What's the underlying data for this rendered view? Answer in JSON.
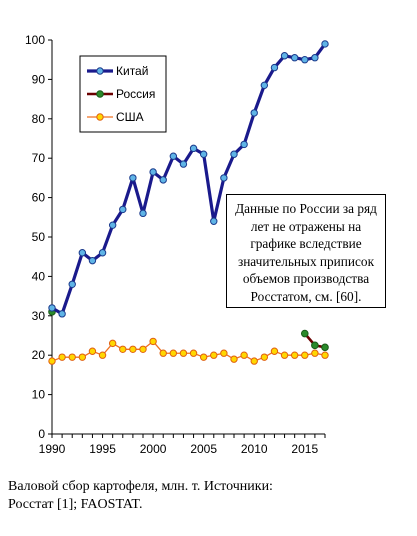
{
  "chart_data": {
    "type": "line",
    "xlim": [
      1990,
      2017
    ],
    "ylim": [
      0,
      100
    ],
    "x_ticks": [
      1990,
      1995,
      2000,
      2005,
      2010,
      2015
    ],
    "y_ticks": [
      0,
      10,
      20,
      30,
      40,
      50,
      60,
      70,
      80,
      90,
      100
    ],
    "grid": false,
    "legend_position": "top-left",
    "series": [
      {
        "name": "Китай",
        "color": "#1a1a8c",
        "marker_color": "#5fb4e6",
        "x": [
          1990,
          1991,
          1992,
          1993,
          1994,
          1995,
          1996,
          1997,
          1998,
          1999,
          2000,
          2001,
          2002,
          2003,
          2004,
          2005,
          2006,
          2007,
          2008,
          2009,
          2010,
          2011,
          2012,
          2013,
          2014,
          2015,
          2016,
          2017
        ],
        "values": [
          32,
          30.5,
          38,
          46,
          44,
          46,
          53,
          57,
          65,
          56,
          66.5,
          64.5,
          70.5,
          68.5,
          72.5,
          71,
          54,
          65,
          71,
          73.5,
          81.5,
          88.5,
          93,
          96,
          95.5,
          95,
          95.5,
          99
        ]
      },
      {
        "name": "Россия",
        "color": "#6b0000",
        "marker_color": "#2a8a2a",
        "x": [
          1990,
          2015,
          2016,
          2017
        ],
        "values": [
          31,
          25.5,
          22.5,
          22
        ]
      },
      {
        "name": "США",
        "color": "#f07020",
        "marker_color": "#ffd700",
        "x": [
          1990,
          1991,
          1992,
          1993,
          1994,
          1995,
          1996,
          1997,
          1998,
          1999,
          2000,
          2001,
          2002,
          2003,
          2004,
          2005,
          2006,
          2007,
          2008,
          2009,
          2010,
          2011,
          2012,
          2013,
          2014,
          2015,
          2016,
          2017
        ],
        "values": [
          18.5,
          19.5,
          19.5,
          19.5,
          21,
          20,
          23,
          21.5,
          21.5,
          21.5,
          23.5,
          20.5,
          20.5,
          20.5,
          20.5,
          19.5,
          20,
          20.5,
          19,
          20,
          18.5,
          19.5,
          21,
          20,
          20,
          20,
          20.5,
          20
        ]
      }
    ]
  },
  "note": {
    "lines": [
      "Данные по России за ряд",
      "лет не отражены на",
      "графике вследствие",
      "значительных приписок",
      "объемов производства",
      "Росстатом, см. [60]."
    ]
  },
  "caption": {
    "line1": "Валовой сбор картофеля, млн. т. Источники:",
    "line2": "Росстат [1]; FAOSTAT."
  }
}
